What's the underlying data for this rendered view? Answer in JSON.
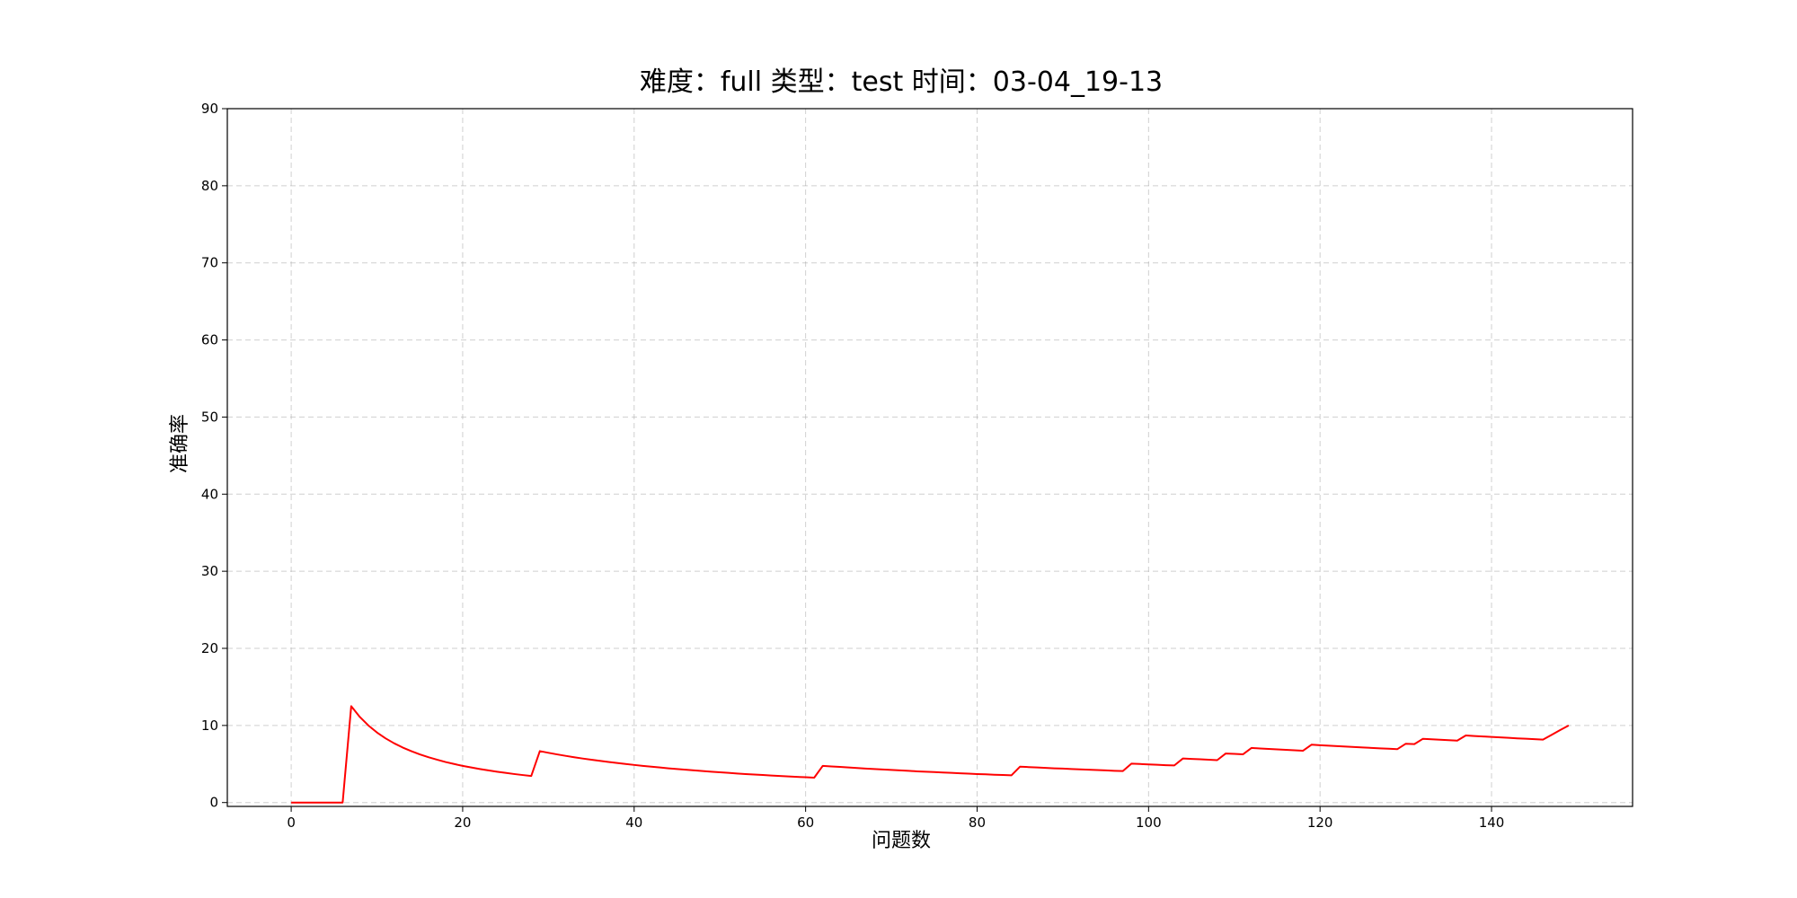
{
  "chart_data": {
    "type": "line",
    "title": "难度：full 类型：test 时间：03-04_19-13",
    "xlabel": "问题数",
    "ylabel": "准确率",
    "xlim": [
      -7.45,
      156.45
    ],
    "ylim": [
      -0.5,
      90
    ],
    "xticks": [
      0,
      20,
      40,
      60,
      80,
      100,
      120,
      140
    ],
    "yticks": [
      0,
      10,
      20,
      30,
      40,
      50,
      60,
      70,
      80,
      90
    ],
    "grid": true,
    "colors": {
      "line": "#ff0000"
    },
    "series": [
      {
        "color": "#ff0000",
        "points": [
          [
            0,
            0
          ],
          [
            1,
            0
          ],
          [
            2,
            0
          ],
          [
            3,
            0
          ],
          [
            4,
            0
          ],
          [
            5,
            0
          ],
          [
            6,
            0
          ],
          [
            7,
            12.5
          ],
          [
            8,
            11.11
          ],
          [
            9,
            10.0
          ],
          [
            10,
            9.09
          ],
          [
            11,
            8.33
          ],
          [
            12,
            7.69
          ],
          [
            13,
            7.14
          ],
          [
            14,
            6.67
          ],
          [
            15,
            6.25
          ],
          [
            16,
            5.88
          ],
          [
            17,
            5.56
          ],
          [
            18,
            5.26
          ],
          [
            19,
            5.0
          ],
          [
            20,
            4.76
          ],
          [
            21,
            4.55
          ],
          [
            22,
            4.35
          ],
          [
            23,
            4.17
          ],
          [
            24,
            4.0
          ],
          [
            25,
            3.85
          ],
          [
            26,
            3.7
          ],
          [
            27,
            3.57
          ],
          [
            28,
            3.45
          ],
          [
            29,
            6.67
          ],
          [
            30,
            6.45
          ],
          [
            31,
            6.25
          ],
          [
            32,
            6.06
          ],
          [
            33,
            5.88
          ],
          [
            34,
            5.71
          ],
          [
            35,
            5.56
          ],
          [
            36,
            5.41
          ],
          [
            37,
            5.26
          ],
          [
            38,
            5.13
          ],
          [
            39,
            5.0
          ],
          [
            40,
            4.88
          ],
          [
            41,
            4.76
          ],
          [
            42,
            4.65
          ],
          [
            43,
            4.55
          ],
          [
            44,
            4.44
          ],
          [
            45,
            4.35
          ],
          [
            46,
            4.26
          ],
          [
            47,
            4.17
          ],
          [
            48,
            4.08
          ],
          [
            49,
            4.0
          ],
          [
            50,
            3.92
          ],
          [
            51,
            3.85
          ],
          [
            52,
            3.77
          ],
          [
            53,
            3.7
          ],
          [
            54,
            3.64
          ],
          [
            55,
            3.57
          ],
          [
            56,
            3.51
          ],
          [
            57,
            3.45
          ],
          [
            58,
            3.39
          ],
          [
            59,
            3.33
          ],
          [
            60,
            3.28
          ],
          [
            61,
            3.23
          ],
          [
            62,
            4.76
          ],
          [
            63,
            4.69
          ],
          [
            64,
            4.62
          ],
          [
            65,
            4.55
          ],
          [
            66,
            4.48
          ],
          [
            67,
            4.41
          ],
          [
            68,
            4.35
          ],
          [
            69,
            4.29
          ],
          [
            70,
            4.23
          ],
          [
            71,
            4.17
          ],
          [
            72,
            4.11
          ],
          [
            73,
            4.05
          ],
          [
            74,
            4.0
          ],
          [
            75,
            3.95
          ],
          [
            76,
            3.9
          ],
          [
            77,
            3.85
          ],
          [
            78,
            3.8
          ],
          [
            79,
            3.75
          ],
          [
            80,
            3.7
          ],
          [
            81,
            3.66
          ],
          [
            82,
            3.61
          ],
          [
            83,
            3.57
          ],
          [
            84,
            3.53
          ],
          [
            85,
            4.65
          ],
          [
            86,
            4.6
          ],
          [
            87,
            4.55
          ],
          [
            88,
            4.49
          ],
          [
            89,
            4.44
          ],
          [
            90,
            4.4
          ],
          [
            91,
            4.35
          ],
          [
            92,
            4.3
          ],
          [
            93,
            4.26
          ],
          [
            94,
            4.21
          ],
          [
            95,
            4.17
          ],
          [
            96,
            4.12
          ],
          [
            97,
            4.08
          ],
          [
            98,
            5.05
          ],
          [
            99,
            5.0
          ],
          [
            100,
            4.95
          ],
          [
            101,
            4.9
          ],
          [
            102,
            4.85
          ],
          [
            103,
            4.81
          ],
          [
            104,
            5.71
          ],
          [
            105,
            5.66
          ],
          [
            106,
            5.61
          ],
          [
            107,
            5.56
          ],
          [
            108,
            5.5
          ],
          [
            109,
            6.36
          ],
          [
            110,
            6.31
          ],
          [
            111,
            6.25
          ],
          [
            112,
            7.08
          ],
          [
            113,
            7.02
          ],
          [
            114,
            6.96
          ],
          [
            115,
            6.9
          ],
          [
            116,
            6.84
          ],
          [
            117,
            6.78
          ],
          [
            118,
            6.72
          ],
          [
            119,
            7.5
          ],
          [
            120,
            7.44
          ],
          [
            121,
            7.38
          ],
          [
            122,
            7.32
          ],
          [
            123,
            7.26
          ],
          [
            124,
            7.2
          ],
          [
            125,
            7.14
          ],
          [
            126,
            7.09
          ],
          [
            127,
            7.03
          ],
          [
            128,
            6.98
          ],
          [
            129,
            6.92
          ],
          [
            130,
            7.63
          ],
          [
            131,
            7.58
          ],
          [
            132,
            8.27
          ],
          [
            133,
            8.21
          ],
          [
            134,
            8.15
          ],
          [
            135,
            8.09
          ],
          [
            136,
            8.03
          ],
          [
            137,
            8.7
          ],
          [
            138,
            8.63
          ],
          [
            139,
            8.57
          ],
          [
            140,
            8.51
          ],
          [
            141,
            8.45
          ],
          [
            142,
            8.39
          ],
          [
            143,
            8.33
          ],
          [
            144,
            8.28
          ],
          [
            145,
            8.22
          ],
          [
            146,
            8.16
          ],
          [
            147,
            8.78
          ],
          [
            148,
            9.4
          ],
          [
            149,
            10.0
          ]
        ]
      }
    ]
  }
}
